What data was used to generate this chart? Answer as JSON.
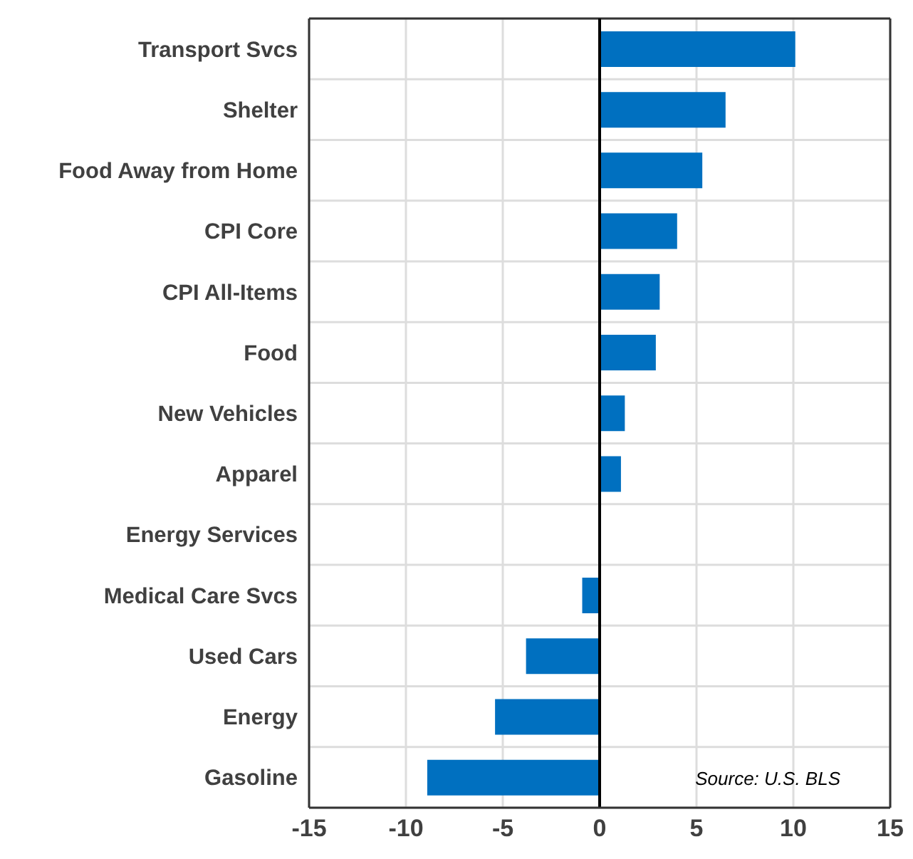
{
  "chart_data": {
    "type": "bar",
    "orientation": "horizontal",
    "categories": [
      "Transport Svcs",
      "Shelter",
      "Food Away from Home",
      "CPI Core",
      "CPI All-Items",
      "Food",
      "New Vehicles",
      "Apparel",
      "Energy Services",
      "Medical Care Svcs",
      "Used Cars",
      "Energy",
      "Gasoline"
    ],
    "values": [
      10.1,
      6.5,
      5.3,
      4.0,
      3.1,
      2.9,
      1.3,
      1.1,
      0.0,
      -0.9,
      -3.8,
      -5.4,
      -8.9
    ],
    "color": "#0070c0",
    "xlim": [
      -15,
      15
    ],
    "xticks": [
      -15,
      -10,
      -5,
      0,
      5,
      10,
      15
    ],
    "grid": true,
    "ref_lines": [
      {
        "axis": "x",
        "value": 0,
        "color": "#000000"
      }
    ],
    "annotations": [
      "Source: U.S. BLS"
    ]
  }
}
